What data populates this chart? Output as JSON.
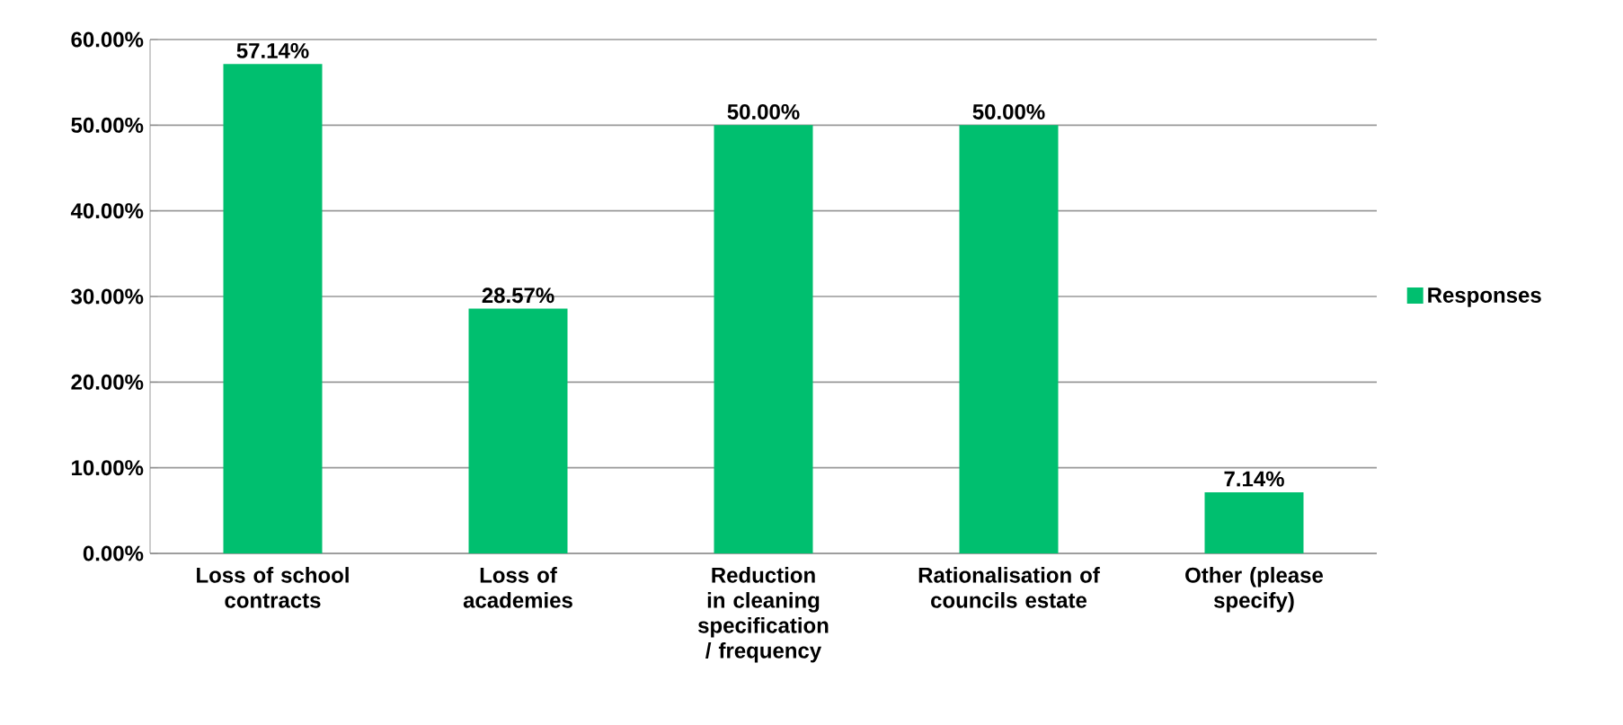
{
  "chart_data": {
    "type": "bar",
    "categories": [
      "Loss of school contracts",
      "Loss of academies",
      "Reduction in cleaning specification / frequency",
      "Rationalisation of councils estate",
      "Other (please specify)"
    ],
    "series": [
      {
        "name": "Responses",
        "color": "#00bf6f",
        "values": [
          57.14,
          28.57,
          50.0,
          50.0,
          7.14
        ],
        "value_labels": [
          "57.14%",
          "28.57%",
          "50.00%",
          "50.00%",
          "7.14%"
        ]
      }
    ],
    "ylim": [
      0,
      60
    ],
    "yticks": [
      {
        "value": 0,
        "label": "0.00%"
      },
      {
        "value": 10,
        "label": "10.00%"
      },
      {
        "value": 20,
        "label": "20.00%"
      },
      {
        "value": 30,
        "label": "30.00%"
      },
      {
        "value": 40,
        "label": "40.00%"
      },
      {
        "value": 50,
        "label": "50.00%"
      },
      {
        "value": 60,
        "label": "60.00%"
      }
    ],
    "grid": "y",
    "legend": "right"
  }
}
